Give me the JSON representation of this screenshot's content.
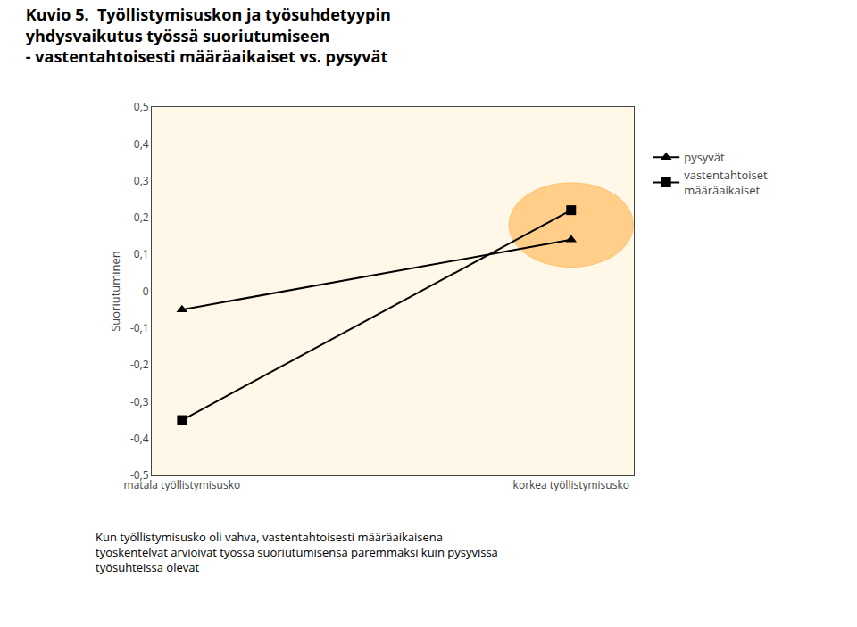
{
  "chart_data": {
    "type": "line",
    "title": "Kuvio 5.  Työllistymisuskon ja työsuhdetyypin\nyhdysvaikutus työssä suoriutumiseen\n- vastentahtoisesti määräaikaiset vs. pysyvät",
    "categories": [
      "matala työllistymisusko",
      "korkea työllistymisusko"
    ],
    "y_label": "Suoriutuminen",
    "series": [
      {
        "name": "pysyvät",
        "color": "#000000",
        "marker": "triangle",
        "values": [
          -0.05,
          0.14
        ]
      },
      {
        "name": "vastentahtoiset\nmääräaikaiset",
        "color": "#000000",
        "marker": "square",
        "values": [
          -0.35,
          0.22
        ]
      }
    ],
    "ylim": [
      -0.5,
      0.5
    ],
    "yticks": [
      {
        "value": -0.5,
        "label": "-0,5"
      },
      {
        "value": -0.4,
        "label": "-0,4"
      },
      {
        "value": -0.3,
        "label": "-0,3"
      },
      {
        "value": -0.2,
        "label": "-0,2"
      },
      {
        "value": -0.1,
        "label": "-0,1"
      },
      0,
      {
        "value": 0.1,
        "label": "0,1"
      },
      {
        "value": 0.2,
        "label": "0,2"
      },
      {
        "value": 0.3,
        "label": "0,3"
      },
      {
        "value": 0.4,
        "label": "0,4"
      },
      {
        "value": 0.5,
        "label": "0,5"
      }
    ],
    "annotations": [
      "Kun työllistymisusko oli vahva, vastentahtoisesti määräaikaisena\ntyöskentelvät arvioivat työssä suoriutumisensa paremmaksi kuin pysyvissä\ntyösuhteissa olevat"
    ],
    "legend": "right",
    "grid": false
  }
}
